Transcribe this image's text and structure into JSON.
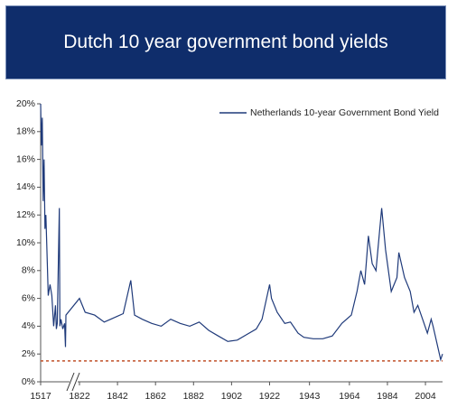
{
  "chart_data": {
    "type": "line",
    "title": "Dutch 10 year government bond yields",
    "ylim": [
      0,
      20
    ],
    "yticks": [
      {
        "value": 0,
        "label": "0%"
      },
      {
        "value": 2,
        "label": "2%"
      },
      {
        "value": 4,
        "label": "4%"
      },
      {
        "value": 6,
        "label": "6%"
      },
      {
        "value": 8,
        "label": "8%"
      },
      {
        "value": 10,
        "label": "10%"
      },
      {
        "value": 12,
        "label": "12%"
      },
      {
        "value": 14,
        "label": "14%"
      },
      {
        "value": 16,
        "label": "16%"
      },
      {
        "value": 18,
        "label": "18%"
      },
      {
        "value": 20,
        "label": "20%"
      }
    ],
    "xlim": [
      1517,
      2013
    ],
    "xticks": [
      1517,
      1822,
      1842,
      1862,
      1882,
      1902,
      1922,
      1943,
      1964,
      1984,
      2004
    ],
    "x_axis_break": true,
    "reference_line": {
      "value": 1.5,
      "color": "#c0502a"
    },
    "legend": "top-right",
    "x": [
      1517,
      1525,
      1535,
      1545,
      1555,
      1565,
      1575,
      1590,
      1600,
      1620,
      1640,
      1660,
      1680,
      1690,
      1700,
      1723,
      1728,
      1740,
      1760,
      1780,
      1790,
      1795,
      1822,
      1825,
      1830,
      1835,
      1840,
      1845,
      1849,
      1851,
      1855,
      1860,
      1865,
      1870,
      1875,
      1880,
      1885,
      1890,
      1895,
      1900,
      1905,
      1910,
      1915,
      1918,
      1922,
      1923,
      1926,
      1930,
      1933,
      1937,
      1940,
      1945,
      1950,
      1955,
      1960,
      1965,
      1968,
      1970,
      1972,
      1974,
      1976,
      1978,
      1981,
      1983,
      1986,
      1989,
      1990,
      1993,
      1996,
      1998,
      2000,
      2003,
      2005,
      2007,
      2008,
      2010,
      2012,
      2013
    ],
    "series": [
      {
        "name": "Netherlands 10-year Government Bond Yield",
        "color": "#1f3a7a",
        "values": [
          20,
          17,
          19,
          13,
          16,
          11,
          12,
          8.5,
          6.2,
          7,
          6.2,
          4,
          5.5,
          3.8,
          4.2,
          12.5,
          4,
          4.5,
          3.8,
          4.2,
          2.5,
          4.8,
          6.0,
          5.0,
          4.8,
          4.3,
          4.6,
          4.9,
          7.3,
          4.8,
          4.5,
          4.2,
          4.0,
          4.5,
          4.2,
          4.0,
          4.3,
          3.7,
          3.3,
          2.9,
          3.0,
          3.4,
          3.8,
          4.5,
          7.0,
          6.0,
          5.0,
          4.2,
          4.3,
          3.5,
          3.2,
          3.1,
          3.1,
          3.3,
          4.2,
          4.8,
          6.5,
          8.0,
          7.0,
          10.5,
          8.5,
          8.0,
          12.5,
          9.5,
          6.5,
          7.5,
          9.3,
          7.5,
          6.5,
          5.0,
          5.5,
          4.3,
          3.5,
          4.5,
          4.0,
          2.8,
          1.6,
          2.0
        ]
      }
    ]
  }
}
